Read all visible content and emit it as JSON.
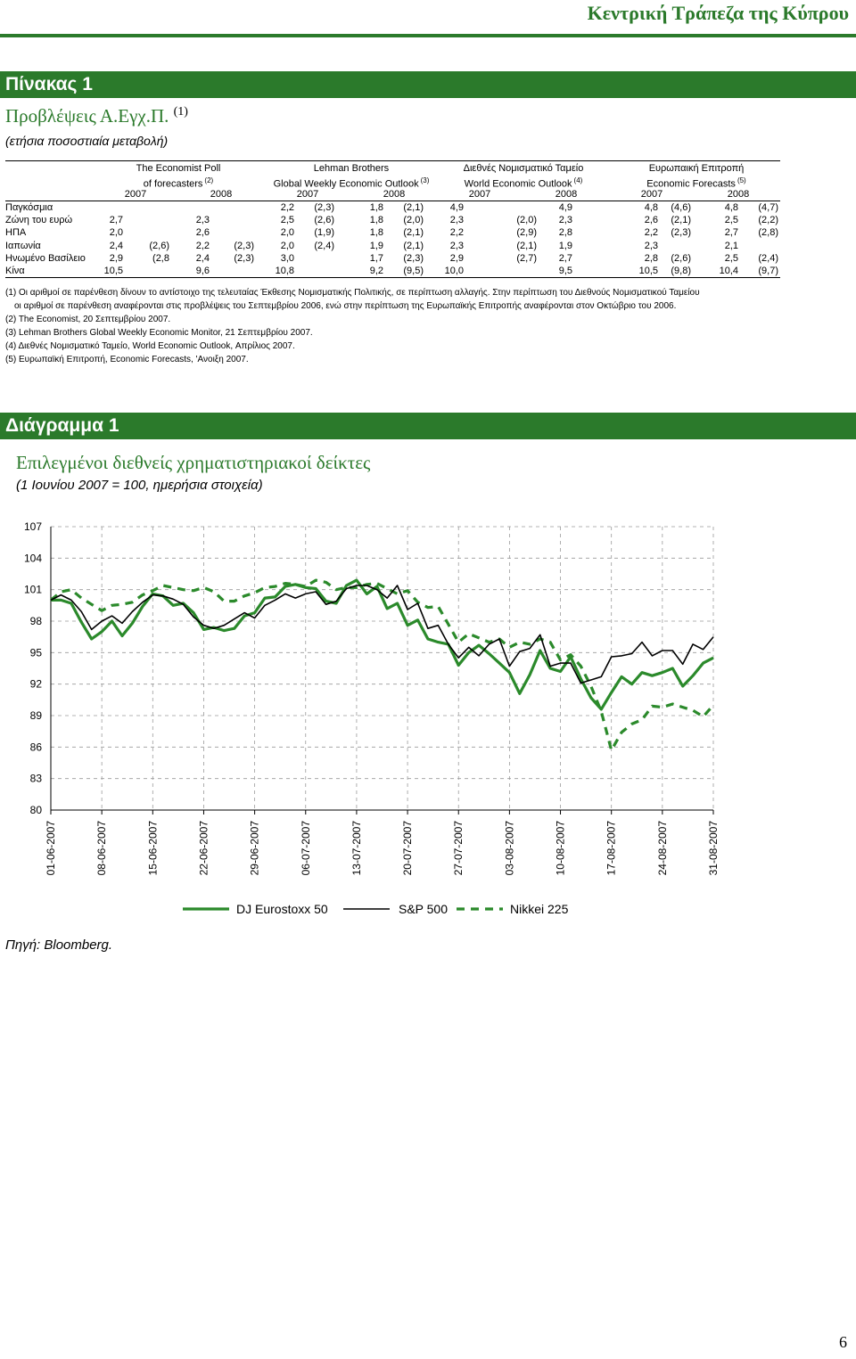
{
  "header": {
    "title": "Κεντρική Τράπεζα της Κύπρου"
  },
  "table_section": {
    "label": "Πίνακας 1",
    "title": "Προβλέψεις Α.Εγχ.Π.",
    "title_sup": "(1)",
    "subtitle": "(ετήσια ποσοστιαία μεταβολή)"
  },
  "table": {
    "groups": [
      {
        "line1": "The Economist Poll",
        "line2": "of forecasters",
        "sup": "(2)"
      },
      {
        "line1": "Lehman Brothers",
        "line2": "Global Weekly Economic Outlook",
        "sup": "(3)"
      },
      {
        "line1": "Διεθνές Νομισματικό Ταμείο",
        "line2": "World Economic Outlook",
        "sup": "(4)"
      },
      {
        "line1": "Ευρωπαική Επιτροπή",
        "line2": "Economic Forecasts",
        "sup": "(5)"
      }
    ],
    "years": [
      "2007",
      "2008",
      "2007",
      "2008",
      "2007",
      "2008",
      "2007",
      "2008"
    ],
    "rows": [
      {
        "label": "Παγκόσμια",
        "cells": [
          "",
          "",
          "",
          "",
          "2,2",
          "(2,3)",
          "1,8",
          "(2,1)",
          "4,9",
          "",
          "4,9",
          "",
          "4,8",
          "(4,6)",
          "4,8",
          "(4,7)"
        ]
      },
      {
        "label": "Ζώνη του ευρώ",
        "cells": [
          "2,7",
          "",
          "2,3",
          "",
          "2,5",
          "(2,6)",
          "1,8",
          "(2,0)",
          "2,3",
          "(2,0)",
          "2,3",
          "",
          "2,6",
          "(2,1)",
          "2,5",
          "(2,2)"
        ]
      },
      {
        "label": "ΗΠΑ",
        "cells": [
          "2,0",
          "",
          "2,6",
          "",
          "2,0",
          "(1,9)",
          "1,8",
          "(2,1)",
          "2,2",
          "(2,9)",
          "2,8",
          "",
          "2,2",
          "(2,3)",
          "2,7",
          "(2,8)"
        ]
      },
      {
        "label": "Ιαπωνία",
        "cells": [
          "2,4",
          "(2,6)",
          "2,2",
          "(2,3)",
          "2,0",
          "(2,4)",
          "1,9",
          "(2,1)",
          "2,3",
          "(2,1)",
          "1,9",
          "",
          "2,3",
          "",
          "2,1",
          ""
        ]
      },
      {
        "label": "Ηνωμένο Βασίλειο",
        "cells": [
          "2,9",
          "(2,8",
          "2,4",
          "(2,3)",
          "3,0",
          "",
          "1,7",
          "(2,3)",
          "2,9",
          "(2,7)",
          "2,7",
          "",
          "2,8",
          "(2,6)",
          "2,5",
          "(2,4)"
        ]
      },
      {
        "label": "Κίνα",
        "cells": [
          "10,5",
          "",
          "9,6",
          "",
          "10,8",
          "",
          "9,2",
          "(9,5)",
          "10,0",
          "",
          "9,5",
          "",
          "10,5",
          "(9,8)",
          "10,4",
          "(9,7)"
        ]
      }
    ]
  },
  "notes": [
    "(1) Οι αριθμοί σε παρένθεση δίνουν το αντίστοιχο της τελευταίας Έκθεσης Νομισματικής Πολιτικής, σε περίπτωση αλλαγής. Στην περίπτωση του Διεθνούς Νομισματικού Ταμείου",
    "οι αριθμοί σε παρένθεση αναφέρονται στις προβλέψεις του Σεπτεμβρίου 2006, ενώ στην περίπτωση της Ευρωπαϊκής Επιτροπής αναφέρονται στον Οκτώβριο του 2006.",
    "(2) The Economist, 20 Σεπτεμβρίου 2007.",
    "(3) Lehman Brothers Global Weekly Economic Monitor, 21 Σεπτεμβρίου 2007.",
    "(4) Διεθνές Νομισματικό Ταμείο, World Economic Outlook, Απρίλιος 2007.",
    "(5) Ευρωπαϊκή Επιτροπή, Economic Forecasts, 'Ανοιξη 2007."
  ],
  "chart_section": {
    "label": "Διάγραμμα 1",
    "title": "Επιλεγμένοι διεθνείς χρηματιστηριακοί δείκτες",
    "subtitle": "(1 Ιουνίου 2007 = 100, ημερήσια στοιχεία)"
  },
  "chart_data": {
    "type": "line",
    "title": "Επιλεγμένοι διεθνείς χρηματιστηριακοί δείκτες",
    "subtitle": "(1 Ιουνίου 2007 = 100, ημερήσια στοιχεία)",
    "ylim": [
      80,
      107
    ],
    "yticks": [
      80,
      83,
      86,
      89,
      92,
      95,
      98,
      101,
      104,
      107
    ],
    "x_tick_labels": [
      "01-06-2007",
      "08-06-2007",
      "15-06-2007",
      "22-06-2007",
      "29-06-2007",
      "06-07-2007",
      "13-07-2007",
      "20-07-2007",
      "27-07-2007",
      "03-08-2007",
      "10-08-2007",
      "17-08-2007",
      "24-08-2007",
      "31-08-2007"
    ],
    "x": [
      "01-06",
      "04-06",
      "05-06",
      "06-06",
      "07-06",
      "08-06",
      "11-06",
      "12-06",
      "13-06",
      "14-06",
      "15-06",
      "18-06",
      "19-06",
      "20-06",
      "21-06",
      "22-06",
      "25-06",
      "26-06",
      "27-06",
      "28-06",
      "29-06",
      "02-07",
      "03-07",
      "04-07",
      "05-07",
      "06-07",
      "09-07",
      "10-07",
      "11-07",
      "12-07",
      "13-07",
      "16-07",
      "17-07",
      "18-07",
      "19-07",
      "20-07",
      "23-07",
      "24-07",
      "25-07",
      "26-07",
      "27-07",
      "30-07",
      "31-07",
      "01-08",
      "02-08",
      "03-08",
      "06-08",
      "07-08",
      "08-08",
      "09-08",
      "10-08",
      "13-08",
      "14-08",
      "15-08",
      "16-08",
      "17-08",
      "20-08",
      "21-08",
      "22-08",
      "23-08",
      "24-08",
      "27-08",
      "28-08",
      "29-08",
      "30-08",
      "31-08"
    ],
    "grid": true,
    "legend_position": "bottom",
    "series": [
      {
        "name": "DJ Eurostoxx 50",
        "color": "#2b8a2b",
        "style": "solid",
        "values": [
          100.0,
          100.0,
          99.7,
          97.9,
          96.3,
          97.0,
          98.0,
          96.6,
          97.8,
          99.4,
          100.6,
          100.4,
          99.5,
          99.7,
          98.8,
          97.2,
          97.4,
          97.1,
          97.3,
          98.5,
          98.8,
          100.2,
          100.3,
          101.3,
          101.5,
          101.2,
          101.1,
          99.9,
          99.7,
          101.4,
          101.9,
          100.6,
          101.3,
          99.2,
          99.7,
          97.6,
          98.1,
          96.3,
          96.0,
          95.8,
          93.8,
          95.0,
          95.7,
          94.9,
          94.0,
          93.1,
          91.1,
          92.9,
          95.2,
          93.5,
          93.2,
          94.6,
          92.5,
          90.7,
          89.6,
          91.2,
          92.7,
          92.0,
          93.1,
          92.8,
          93.1,
          93.5,
          91.8,
          92.8,
          94.0,
          94.5
        ]
      },
      {
        "name": "S&P 500",
        "color": "#000000",
        "style": "solid",
        "values": [
          100.0,
          100.5,
          100.0,
          98.9,
          97.2,
          98.0,
          98.5,
          97.8,
          98.9,
          99.8,
          100.5,
          100.4,
          100.1,
          99.6,
          98.4,
          97.6,
          97.3,
          97.6,
          98.2,
          98.8,
          98.3,
          99.5,
          100.0,
          100.6,
          100.2,
          100.6,
          100.8,
          99.6,
          99.9,
          101.1,
          101.4,
          101.4,
          101.0,
          100.2,
          101.4,
          99.1,
          99.7,
          97.3,
          97.6,
          95.8,
          94.5,
          95.5,
          94.7,
          95.8,
          96.3,
          93.7,
          95.1,
          95.4,
          96.7,
          93.7,
          94.0,
          94.0,
          92.1,
          92.4,
          92.7,
          94.6,
          94.7,
          94.9,
          96.0,
          94.7,
          95.2,
          95.2,
          93.9,
          95.8,
          95.3,
          96.5
        ]
      },
      {
        "name": "Nikkei 225",
        "color": "#2b8a2b",
        "style": "dashed",
        "values": [
          100.0,
          100.8,
          101.0,
          100.2,
          99.6,
          99.0,
          99.5,
          99.6,
          99.8,
          100.5,
          100.9,
          101.4,
          101.2,
          101.0,
          100.9,
          101.2,
          100.8,
          99.9,
          99.9,
          100.4,
          100.7,
          101.2,
          101.3,
          101.6,
          101.5,
          101.3,
          101.9,
          101.7,
          101.0,
          101.2,
          101.2,
          101.5,
          101.6,
          101.1,
          100.6,
          100.9,
          99.8,
          99.3,
          99.4,
          97.7,
          96.0,
          96.8,
          96.4,
          96.0,
          96.3,
          95.5,
          96.0,
          95.8,
          96.3,
          96.0,
          94.3,
          94.8,
          93.7,
          91.8,
          89.4,
          85.7,
          87.4,
          88.2,
          88.6,
          89.9,
          89.8,
          90.1,
          89.8,
          89.5,
          88.9,
          90.0
        ]
      }
    ]
  },
  "source": "Πηγή:  Bloomberg.",
  "page_number": "6"
}
